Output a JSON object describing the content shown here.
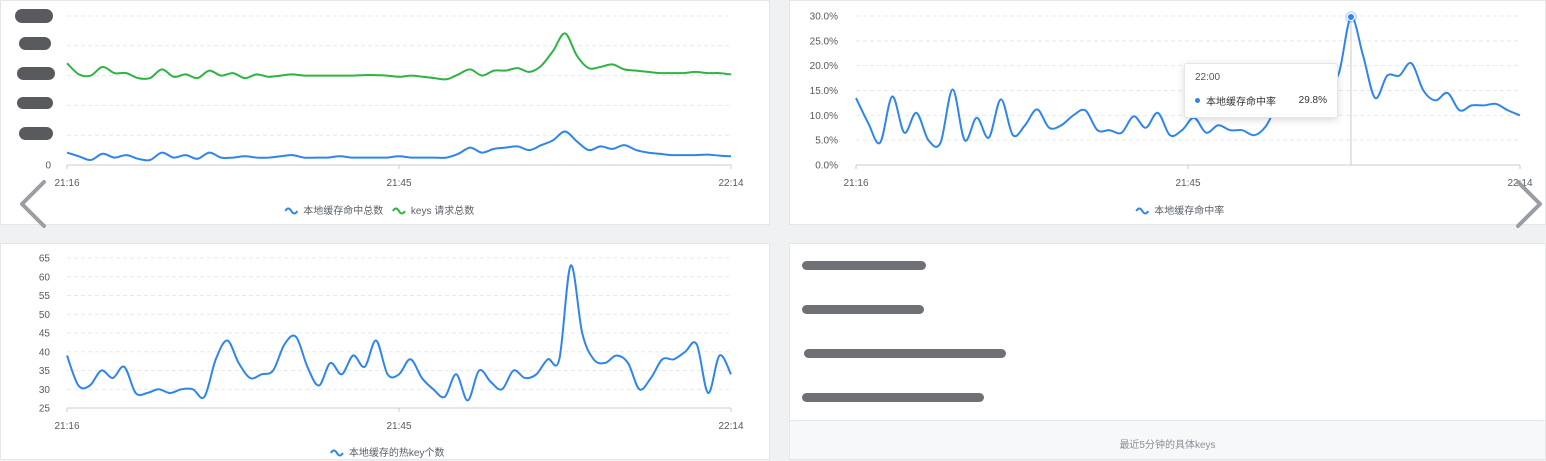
{
  "colors": {
    "blue": "#2f86e8",
    "green": "#2fb344",
    "grid": "#e6e8eb"
  },
  "chart_data": [
    {
      "type": "line",
      "xticks": [
        "21:16",
        "21:45",
        "22:14"
      ],
      "yticks": [
        "0"
      ],
      "ylim": [
        0,
        6
      ],
      "grid": true,
      "legend_position": "bottom",
      "series": [
        {
          "name": "本地缓存命中总数",
          "color": "#2f86e8",
          "values": [
            0.5,
            0.35,
            0.2,
            0.45,
            0.3,
            0.4,
            0.25,
            0.2,
            0.5,
            0.3,
            0.4,
            0.25,
            0.5,
            0.3,
            0.3,
            0.35,
            0.3,
            0.3,
            0.35,
            0.4,
            0.3,
            0.3,
            0.3,
            0.35,
            0.3,
            0.3,
            0.3,
            0.3,
            0.35,
            0.3,
            0.3,
            0.3,
            0.3,
            0.45,
            0.7,
            0.5,
            0.65,
            0.7,
            0.75,
            0.6,
            0.8,
            1.0,
            1.35,
            0.95,
            0.6,
            0.75,
            0.65,
            0.8,
            0.6,
            0.5,
            0.45,
            0.4,
            0.4,
            0.4,
            0.42,
            0.38,
            0.35
          ]
        },
        {
          "name": "keys 请求总数",
          "color": "#2fb344",
          "values": [
            4.1,
            3.65,
            3.6,
            3.95,
            3.7,
            3.7,
            3.5,
            3.5,
            3.85,
            3.55,
            3.65,
            3.5,
            3.8,
            3.6,
            3.7,
            3.5,
            3.65,
            3.55,
            3.6,
            3.65,
            3.6,
            3.6,
            3.6,
            3.6,
            3.6,
            3.62,
            3.62,
            3.6,
            3.55,
            3.6,
            3.55,
            3.5,
            3.45,
            3.65,
            3.85,
            3.6,
            3.8,
            3.8,
            3.9,
            3.75,
            4.0,
            4.6,
            5.3,
            4.4,
            3.9,
            3.95,
            4.05,
            3.85,
            3.8,
            3.75,
            3.7,
            3.7,
            3.7,
            3.75,
            3.7,
            3.7,
            3.65
          ]
        }
      ]
    },
    {
      "type": "line",
      "xticks": [
        "21:16",
        "21:45",
        "22:14"
      ],
      "yticks": [
        "0.0%",
        "5.0%",
        "10.0%",
        "15.0%",
        "20.0%",
        "25.0%",
        "30.0%"
      ],
      "ylim": [
        0,
        30
      ],
      "grid": true,
      "legend_position": "bottom",
      "series": [
        {
          "name": "本地缓存命中率",
          "color": "#2f86e8",
          "values": [
            13.5,
            8.5,
            4.5,
            13.8,
            6.5,
            10.5,
            5,
            4.5,
            15.2,
            5,
            9.5,
            5.5,
            13.2,
            6,
            8,
            11.2,
            7.5,
            8,
            10,
            11,
            7,
            7,
            6.5,
            9.8,
            7.5,
            10.5,
            6,
            7,
            9.5,
            6.5,
            8,
            7,
            7,
            6,
            8,
            13,
            17.5,
            15,
            18,
            16,
            18.5,
            29.8,
            22,
            13.5,
            18,
            18,
            20.5,
            15,
            13,
            14.5,
            11,
            12,
            12,
            12.3,
            11,
            10
          ]
        }
      ],
      "tooltip": {
        "time": "22:00",
        "series": "本地缓存命中率",
        "value": "29.8%"
      }
    },
    {
      "type": "line",
      "xticks": [
        "21:16",
        "21:45",
        "22:14"
      ],
      "yticks": [
        "25",
        "30",
        "35",
        "40",
        "45",
        "50",
        "55",
        "60",
        "65"
      ],
      "ylim": [
        25,
        65
      ],
      "grid": true,
      "legend_position": "bottom",
      "series": [
        {
          "name": "本地缓存的热key个数",
          "color": "#2f86e8",
          "values": [
            39,
            31,
            31,
            35,
            33,
            36,
            29,
            29,
            30,
            29,
            30,
            30,
            28,
            38,
            43,
            37,
            33,
            34,
            35,
            42,
            44,
            36,
            31,
            37,
            34,
            39,
            36,
            43,
            34,
            34,
            38,
            33,
            30,
            28,
            34,
            27,
            35,
            32,
            30,
            35,
            33,
            34,
            38,
            38,
            63,
            45,
            38,
            37,
            39,
            37,
            30,
            33,
            38,
            38,
            40,
            42,
            29,
            39,
            34
          ]
        }
      ]
    }
  ],
  "keys_panel": {
    "caption": "最近5分钟的具体keys"
  }
}
